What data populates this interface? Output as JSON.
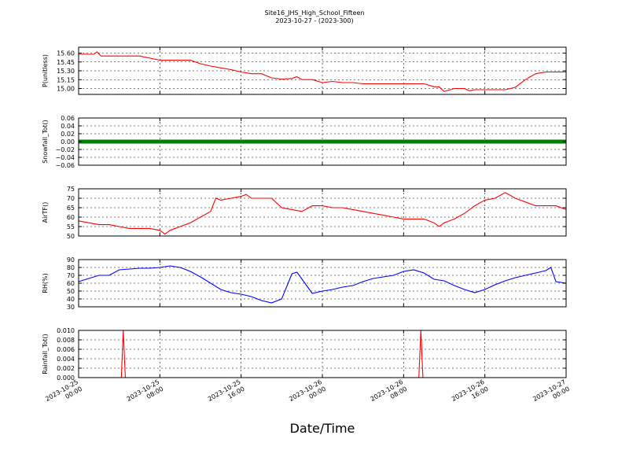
{
  "figure": {
    "title_line1": "Site16_JHS_High_School_Fifteen",
    "title_line2": "2023-10-27 - (2023-300)",
    "xlabel": "Date/Time"
  },
  "chart_data": [
    {
      "type": "line",
      "ylabel": "P(unitless)",
      "color": "#ff0000",
      "ylim": [
        14.9,
        15.7
      ],
      "yticks": [
        15.0,
        15.15,
        15.3,
        15.45,
        15.6
      ],
      "ytick_labels": [
        "15.00",
        "15.15",
        "15.30",
        "15.45",
        "15.60"
      ],
      "xlim": [
        0,
        48
      ],
      "x": [
        0,
        1.5,
        1.8,
        2.2,
        3,
        4,
        6,
        8,
        9,
        10,
        11,
        12,
        13,
        14,
        15,
        16,
        17,
        18,
        19,
        20,
        21,
        21.5,
        22,
        23,
        24,
        25,
        26,
        27,
        28,
        28.5,
        29,
        30,
        31,
        32,
        33,
        34,
        35,
        35.5,
        36,
        37,
        38,
        38.5,
        39,
        40,
        41,
        42,
        43,
        44,
        45,
        46,
        47,
        48
      ],
      "y": [
        15.58,
        15.58,
        15.62,
        15.55,
        15.55,
        15.55,
        15.55,
        15.48,
        15.48,
        15.48,
        15.48,
        15.42,
        15.38,
        15.35,
        15.32,
        15.28,
        15.25,
        15.25,
        15.18,
        15.16,
        15.17,
        15.2,
        15.15,
        15.15,
        15.1,
        15.12,
        15.1,
        15.1,
        15.08,
        15.08,
        15.08,
        15.08,
        15.08,
        15.08,
        15.08,
        15.08,
        15.03,
        15.03,
        14.95,
        15.0,
        15.0,
        14.96,
        14.98,
        14.98,
        14.98,
        14.98,
        15.02,
        15.15,
        15.25,
        15.28,
        15.28,
        15.28
      ]
    },
    {
      "type": "scatter",
      "ylabel": "Snowfall_Tot()",
      "color": "#008000",
      "ylim": [
        -0.06,
        0.06
      ],
      "yticks": [
        -0.06,
        -0.04,
        -0.02,
        0.0,
        0.02,
        0.04,
        0.06
      ],
      "ytick_labels": [
        "−0.06",
        "−0.04",
        "−0.02",
        "0.00",
        "0.02",
        "0.04",
        "0.06"
      ],
      "xlim": [
        0,
        48
      ],
      "x": [
        0,
        48
      ],
      "y": [
        0,
        0
      ]
    },
    {
      "type": "line",
      "ylabel": "AirTF()",
      "color": "#ff0000",
      "ylim": [
        50,
        75
      ],
      "yticks": [
        50,
        55,
        60,
        65,
        70,
        75
      ],
      "ytick_labels": [
        "50",
        "55",
        "60",
        "65",
        "70",
        "75"
      ],
      "xlim": [
        0,
        48
      ],
      "x": [
        0,
        1,
        2,
        3,
        4,
        5,
        6,
        7,
        8,
        8.5,
        9,
        10,
        11,
        12,
        13,
        13.5,
        14,
        15,
        16,
        16.5,
        17,
        18,
        19,
        20,
        21,
        22,
        23,
        24,
        25,
        26,
        27,
        28,
        29,
        30,
        31,
        32,
        33,
        34,
        35,
        35.5,
        36,
        37,
        38,
        39,
        40,
        41,
        42,
        43,
        44,
        45,
        46,
        47,
        48
      ],
      "y": [
        58,
        57,
        56,
        56,
        55,
        54,
        54,
        54,
        53,
        51,
        53,
        55,
        57,
        60,
        63,
        70,
        69,
        70,
        71,
        72,
        70,
        70,
        70,
        65,
        64,
        63,
        66,
        66,
        65,
        65,
        64,
        63,
        62,
        61,
        60,
        59,
        59,
        59,
        57,
        55,
        57,
        59,
        62,
        66,
        69,
        70,
        73,
        70,
        68,
        66,
        66,
        66,
        64
      ]
    },
    {
      "type": "line",
      "ylabel": "RH(%)",
      "color": "#0000ff",
      "ylim": [
        30,
        90
      ],
      "yticks": [
        30,
        40,
        50,
        60,
        70,
        80,
        90
      ],
      "ytick_labels": [
        "30",
        "40",
        "50",
        "60",
        "70",
        "80",
        "90"
      ],
      "xlim": [
        0,
        48
      ],
      "x": [
        0,
        1,
        2,
        3,
        4,
        5,
        6,
        7,
        8,
        9,
        10,
        11,
        12,
        13,
        14,
        15,
        16,
        17,
        18,
        19,
        20,
        21,
        21.5,
        22,
        23,
        24,
        25,
        26,
        27,
        28,
        29,
        30,
        31,
        32,
        33,
        34,
        35,
        36,
        37,
        38,
        39,
        40,
        41,
        42,
        43,
        44,
        45,
        46,
        46.5,
        47,
        48
      ],
      "y": [
        62,
        66,
        70,
        70,
        77,
        78,
        79,
        79,
        80,
        82,
        80,
        75,
        68,
        60,
        52,
        48,
        46,
        43,
        38,
        35,
        40,
        72,
        74,
        65,
        47,
        50,
        52,
        55,
        57,
        62,
        66,
        68,
        70,
        75,
        77,
        73,
        65,
        63,
        57,
        52,
        48,
        52,
        58,
        63,
        67,
        70,
        73,
        76,
        80,
        62,
        60
      ]
    },
    {
      "type": "line",
      "ylabel": "Rainfall_Tot()",
      "color": "#ff0000",
      "ylim": [
        0,
        0.01
      ],
      "yticks": [
        0,
        0.002,
        0.004,
        0.006,
        0.008,
        0.01
      ],
      "ytick_labels": [
        "0.000",
        "0.002",
        "0.004",
        "0.006",
        "0.008",
        "0.010"
      ],
      "xlim": [
        0,
        48
      ],
      "x": [
        0,
        4.2,
        4.4,
        4.6,
        33.5,
        33.7,
        33.9,
        48
      ],
      "y": [
        0,
        0,
        0.01,
        0,
        0,
        0.01,
        0,
        0
      ]
    }
  ],
  "xticks": {
    "values": [
      0,
      8,
      16,
      24,
      32,
      40,
      48
    ],
    "labels": [
      [
        "2023-10-25",
        "00:00"
      ],
      [
        "2023-10-25",
        "08:00"
      ],
      [
        "2023-10-25",
        "16:00"
      ],
      [
        "2023-10-26",
        "00:00"
      ],
      [
        "2023-10-26",
        "08:00"
      ],
      [
        "2023-10-26",
        "16:00"
      ],
      [
        "2023-10-27",
        "00:00"
      ]
    ]
  }
}
